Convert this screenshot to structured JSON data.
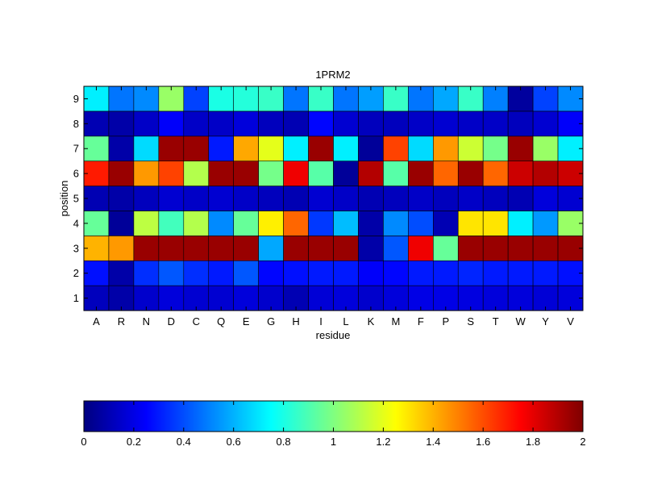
{
  "chart_data": {
    "type": "heatmap",
    "title": "1PRM2",
    "xlabel": "residue",
    "ylabel": "position",
    "x_categories": [
      "A",
      "R",
      "N",
      "D",
      "C",
      "Q",
      "E",
      "G",
      "H",
      "I",
      "L",
      "K",
      "M",
      "F",
      "P",
      "S",
      "T",
      "W",
      "Y",
      "V"
    ],
    "y_categories": [
      "1",
      "2",
      "3",
      "4",
      "5",
      "6",
      "7",
      "8",
      "9"
    ],
    "colormap": "jet",
    "clim": [
      0,
      2
    ],
    "colorbar": {
      "orientation": "horizontal",
      "placement": "bottom",
      "tick_values": [
        0,
        0.2,
        0.4,
        0.6,
        0.8,
        1,
        1.2,
        1.4,
        1.6,
        1.8,
        2
      ],
      "tick_labels": [
        "0",
        "0.2",
        "0.4",
        "0.6",
        "0.8",
        "1",
        "1.2",
        "1.4",
        "1.6",
        "1.8",
        "2"
      ]
    },
    "values": [
      [
        0.12,
        0.08,
        0.15,
        0.18,
        0.16,
        0.16,
        0.18,
        0.15,
        0.1,
        0.17,
        0.18,
        0.15,
        0.18,
        0.2,
        0.2,
        0.19,
        0.18,
        0.18,
        0.17,
        0.18
      ],
      [
        0.28,
        0.08,
        0.34,
        0.42,
        0.34,
        0.3,
        0.42,
        0.26,
        0.28,
        0.3,
        0.3,
        0.24,
        0.26,
        0.3,
        0.3,
        0.32,
        0.3,
        0.3,
        0.3,
        0.28
      ],
      [
        1.4,
        1.45,
        1.95,
        1.95,
        1.95,
        1.95,
        1.95,
        0.58,
        1.95,
        1.95,
        1.95,
        0.08,
        0.42,
        1.78,
        0.95,
        1.95,
        1.95,
        1.95,
        1.95,
        1.95
      ],
      [
        0.95,
        0.05,
        1.12,
        0.88,
        1.1,
        0.52,
        0.95,
        1.28,
        1.55,
        0.36,
        0.62,
        0.08,
        0.52,
        0.4,
        0.1,
        1.3,
        1.3,
        0.72,
        0.55,
        1.05
      ],
      [
        0.1,
        0.08,
        0.12,
        0.16,
        0.14,
        0.16,
        0.14,
        0.12,
        0.1,
        0.16,
        0.14,
        0.1,
        0.12,
        0.14,
        0.12,
        0.14,
        0.12,
        0.1,
        0.18,
        0.16
      ],
      [
        1.7,
        1.95,
        1.45,
        1.62,
        1.1,
        1.95,
        1.95,
        0.98,
        1.78,
        0.92,
        0.05,
        1.9,
        0.92,
        1.95,
        1.55,
        1.95,
        1.55,
        1.85,
        1.9,
        1.85
      ],
      [
        0.95,
        0.08,
        0.68,
        1.95,
        1.95,
        0.3,
        1.42,
        1.2,
        0.72,
        1.95,
        0.72,
        0.05,
        1.62,
        0.68,
        1.45,
        1.15,
        0.98,
        1.95,
        1.05,
        0.72
      ],
      [
        0.1,
        0.08,
        0.14,
        0.24,
        0.14,
        0.14,
        0.18,
        0.12,
        0.1,
        0.26,
        0.16,
        0.12,
        0.12,
        0.14,
        0.16,
        0.14,
        0.14,
        0.12,
        0.16,
        0.24
      ],
      [
        0.72,
        0.48,
        0.52,
        1.05,
        0.38,
        0.8,
        0.82,
        0.86,
        0.48,
        0.86,
        0.48,
        0.56,
        0.86,
        0.48,
        0.58,
        0.86,
        0.5,
        0.06,
        0.38,
        0.52
      ]
    ]
  }
}
